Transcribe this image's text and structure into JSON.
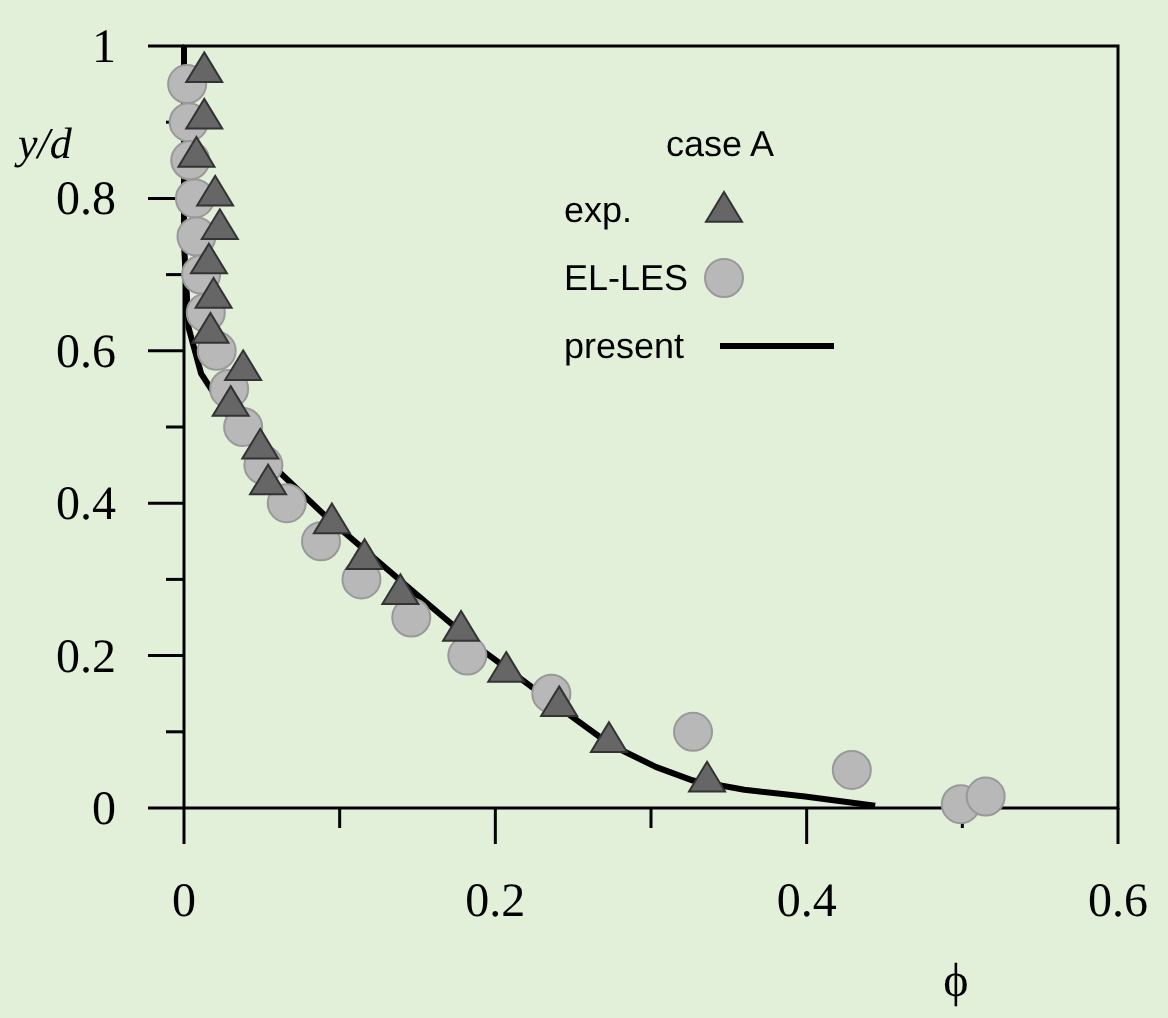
{
  "chart_data": {
    "type": "scatter",
    "xlabel": "ϕ",
    "ylabel": "y/d",
    "legend_title": "case A",
    "legend": "top right",
    "grid": false,
    "xlim": [
      0,
      0.6
    ],
    "xticks": [
      0,
      {
        "value": 0.1,
        "label": null
      },
      0.2,
      {
        "value": 0.3,
        "label": null
      },
      0.4,
      {
        "value": 0.5,
        "label": null
      },
      0.6
    ],
    "ylim": [
      0,
      1
    ],
    "yticks": [
      0,
      {
        "value": 0.1,
        "label": null
      },
      0.2,
      {
        "value": 0.3,
        "label": null
      },
      0.4,
      {
        "value": 0.5,
        "label": null
      },
      0.6,
      {
        "value": 0.7,
        "label": null
      },
      0.8,
      {
        "value": 0.9,
        "label": null
      },
      1
    ],
    "series": [
      {
        "name": "exp.",
        "type": "scatter",
        "marker": "triangle",
        "color": "#666666",
        "x": [
          0.013,
          0.013,
          0.008,
          0.02,
          0.023,
          0.016,
          0.019,
          0.017,
          0.038,
          0.03,
          0.049,
          0.054,
          0.095,
          0.116,
          0.139,
          0.178,
          0.207,
          0.241,
          0.273,
          0.336
        ],
        "values": [
          0.968,
          0.907,
          0.857,
          0.806,
          0.762,
          0.717,
          0.672,
          0.626,
          0.577,
          0.53,
          0.474,
          0.427,
          0.376,
          0.329,
          0.283,
          0.235,
          0.181,
          0.136,
          0.089,
          0.037
        ]
      },
      {
        "name": "EL-LES",
        "type": "scatter",
        "marker": "circle",
        "color": "#b8b8b8",
        "x": [
          0.002,
          0.003,
          0.004,
          0.007,
          0.008,
          0.011,
          0.014,
          0.021,
          0.029,
          0.038,
          0.051,
          0.066,
          0.088,
          0.114,
          0.146,
          0.182,
          0.236,
          0.327,
          0.429,
          0.499,
          0.515
        ],
        "values": [
          0.95,
          0.9,
          0.85,
          0.8,
          0.75,
          0.7,
          0.65,
          0.6,
          0.55,
          0.5,
          0.45,
          0.4,
          0.35,
          0.3,
          0.25,
          0.2,
          0.15,
          0.1,
          0.05,
          0.005,
          0.015
        ]
      },
      {
        "name": "present",
        "type": "line",
        "marker": "none",
        "line_style": "solid",
        "color": "#000000",
        "x": [
          0,
          0,
          0.003,
          0.011,
          0.03,
          0.054,
          0.092,
          0.145,
          0.193,
          0.241,
          0.274,
          0.303,
          0.327,
          0.36,
          0.399,
          0.444
        ],
        "values": [
          1,
          0.74,
          0.63,
          0.57,
          0.51,
          0.455,
          0.381,
          0.288,
          0.205,
          0.132,
          0.083,
          0.054,
          0.036,
          0.024,
          0.015,
          0.003
        ]
      }
    ]
  }
}
